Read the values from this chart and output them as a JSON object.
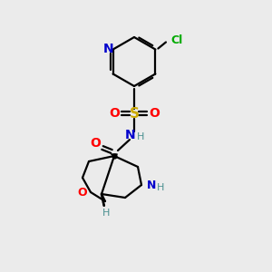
{
  "bg_color": "#ebebeb",
  "atom_colors": {
    "C": "#000000",
    "N": "#0000cc",
    "O": "#ff0000",
    "S": "#ccaa00",
    "Cl": "#00aa00",
    "H": "#4a9090"
  },
  "bond_color": "#000000"
}
